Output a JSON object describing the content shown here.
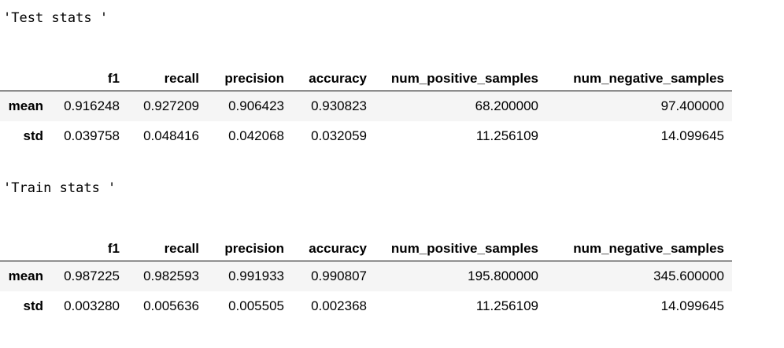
{
  "test": {
    "repr": "'Test stats '",
    "columns": [
      "f1",
      "recall",
      "precision",
      "accuracy",
      "num_positive_samples",
      "num_negative_samples"
    ],
    "rows": [
      {
        "index": "mean",
        "values": [
          "0.916248",
          "0.927209",
          "0.906423",
          "0.930823",
          "68.200000",
          "97.400000"
        ]
      },
      {
        "index": "std",
        "values": [
          "0.039758",
          "0.048416",
          "0.042068",
          "0.032059",
          "11.256109",
          "14.099645"
        ]
      }
    ]
  },
  "train": {
    "repr": "'Train stats '",
    "columns": [
      "f1",
      "recall",
      "precision",
      "accuracy",
      "num_positive_samples",
      "num_negative_samples"
    ],
    "rows": [
      {
        "index": "mean",
        "values": [
          "0.987225",
          "0.982593",
          "0.991933",
          "0.990807",
          "195.800000",
          "345.600000"
        ]
      },
      {
        "index": "std",
        "values": [
          "0.003280",
          "0.005636",
          "0.005505",
          "0.002368",
          "11.256109",
          "14.099645"
        ]
      }
    ]
  },
  "colors": {
    "background": "#ffffff",
    "text": "#000000",
    "striped_row": "#f5f5f5",
    "header_rule": "#000000"
  }
}
